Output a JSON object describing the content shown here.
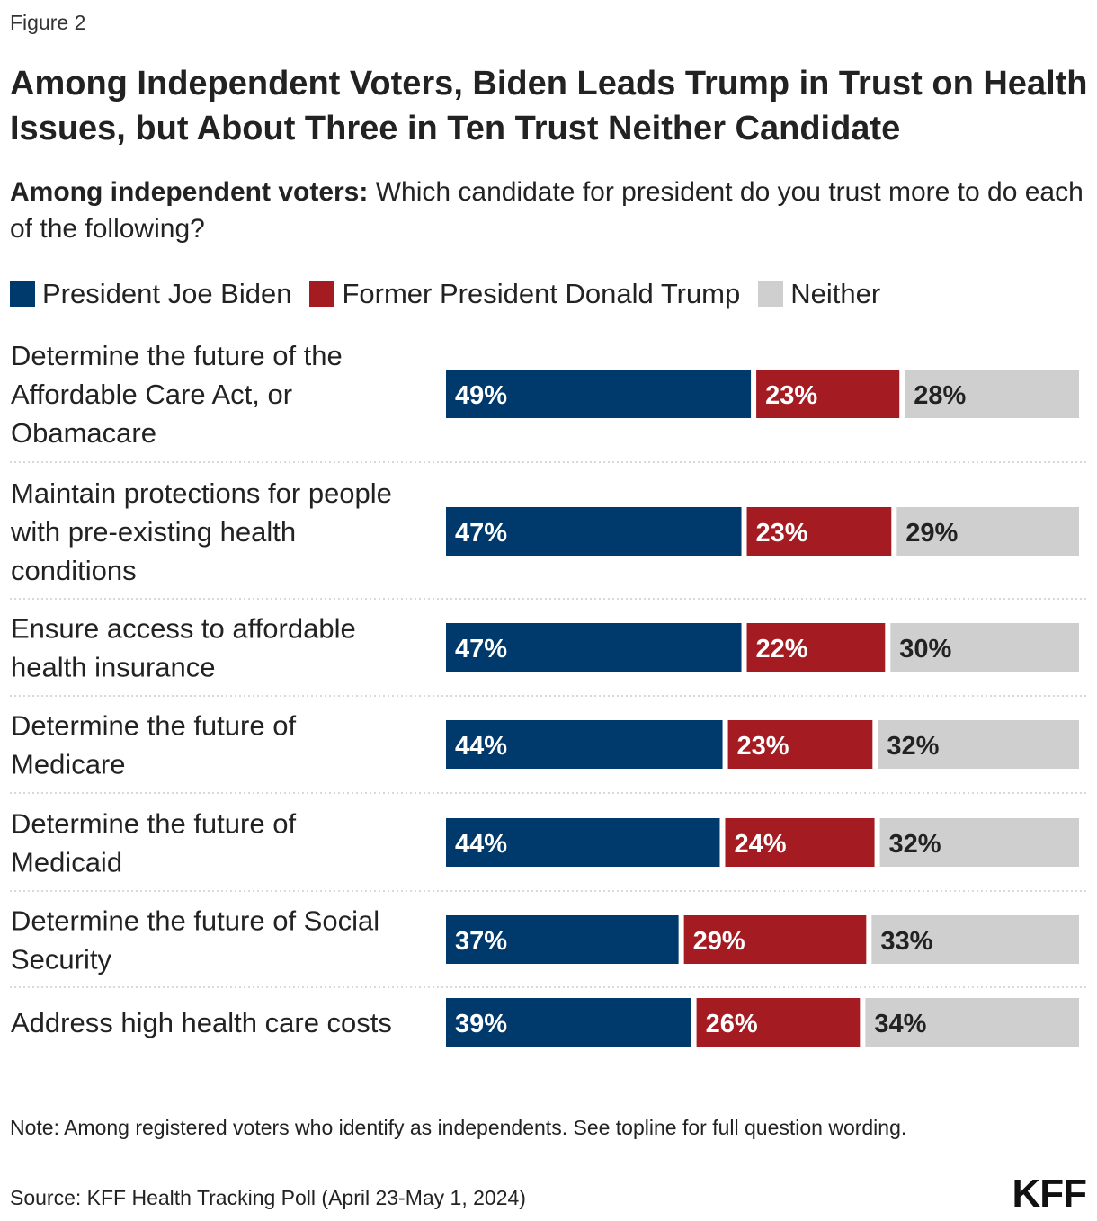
{
  "figure_label": "Figure 2",
  "title": "Among Independent Voters, Biden Leads Trump in Trust on Health Issues, but About Three in Ten Trust Neither Candidate",
  "subtitle_bold": "Among independent voters:",
  "subtitle_rest": " Which candidate for president do you trust more to do each of the following?",
  "note": "Note: Among registered voters who identify as independents. See topline for full question wording.",
  "source": "Source: KFF Health Tracking Poll (April 23-May 1, 2024)",
  "logo": "KFF",
  "colors": {
    "biden": "#003a6c",
    "trump": "#a51b22",
    "neither": "#cfcfcf",
    "divider": "#cccccc"
  },
  "chart_data": {
    "type": "bar",
    "orientation": "horizontal",
    "stacked": true,
    "value_suffix": "%",
    "categories": [
      [
        "Determine the future of the",
        "Affordable Care Act, or",
        "Obamacare"
      ],
      [
        "Maintain protections for people",
        "with pre-existing health",
        "conditions"
      ],
      [
        "Ensure access to affordable",
        "health insurance"
      ],
      [
        "Determine the future of",
        "Medicare"
      ],
      [
        "Determine the future of",
        "Medicaid"
      ],
      [
        "Determine the future of Social",
        "Security"
      ],
      [
        "Address high health care costs"
      ]
    ],
    "series": [
      {
        "name": "President Joe Biden",
        "values": [
          49,
          47,
          47,
          44,
          44,
          37,
          39
        ]
      },
      {
        "name": "Former President Donald Trump",
        "values": [
          23,
          23,
          22,
          23,
          24,
          29,
          26
        ]
      },
      {
        "name": "Neither",
        "values": [
          28,
          29,
          30,
          32,
          32,
          33,
          34
        ]
      }
    ]
  }
}
